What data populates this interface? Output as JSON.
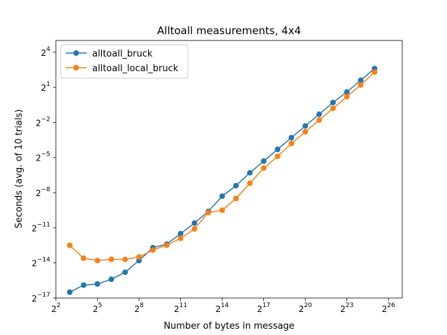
{
  "chart_data": {
    "type": "line",
    "title": "Alltoall measurements, 4x4",
    "xlabel": "Number of bytes in message",
    "ylabel": "Seconds (avg. of 10 trials)",
    "xscale": "log2",
    "yscale": "log2",
    "xlim_exp": [
      2,
      27
    ],
    "ylim_exp": [
      -17,
      5
    ],
    "x_ticks": [
      {
        "base": "2",
        "exp": "2",
        "value_exp": 2
      },
      {
        "base": "2",
        "exp": "5",
        "value_exp": 5
      },
      {
        "base": "2",
        "exp": "8",
        "value_exp": 8
      },
      {
        "base": "2",
        "exp": "11",
        "value_exp": 11
      },
      {
        "base": "2",
        "exp": "14",
        "value_exp": 14
      },
      {
        "base": "2",
        "exp": "17",
        "value_exp": 17
      },
      {
        "base": "2",
        "exp": "20",
        "value_exp": 20
      },
      {
        "base": "2",
        "exp": "23",
        "value_exp": 23
      },
      {
        "base": "2",
        "exp": "26",
        "value_exp": 26
      }
    ],
    "y_ticks": [
      {
        "base": "2",
        "exp": "4",
        "value_exp": 4
      },
      {
        "base": "2",
        "exp": "1",
        "value_exp": 1
      },
      {
        "base": "2",
        "exp": "−2",
        "value_exp": -2
      },
      {
        "base": "2",
        "exp": "−5",
        "value_exp": -5
      },
      {
        "base": "2",
        "exp": "−8",
        "value_exp": -8
      },
      {
        "base": "2",
        "exp": "−11",
        "value_exp": -11
      },
      {
        "base": "2",
        "exp": "−14",
        "value_exp": -14
      },
      {
        "base": "2",
        "exp": "−17",
        "value_exp": -17
      }
    ],
    "x_exp": [
      3,
      4,
      5,
      6,
      7,
      8,
      9,
      10,
      11,
      12,
      13,
      14,
      15,
      16,
      17,
      18,
      19,
      20,
      21,
      22,
      23,
      24,
      25
    ],
    "series": [
      {
        "name": "alltoall_bruck",
        "color": "#1f77b4",
        "y_exp": [
          -16.5,
          -15.9,
          -15.8,
          -15.4,
          -14.8,
          -13.8,
          -12.7,
          -12.4,
          -11.5,
          -10.6,
          -9.6,
          -8.3,
          -7.4,
          -6.3,
          -5.3,
          -4.3,
          -3.3,
          -2.3,
          -1.3,
          -0.3,
          0.6,
          1.6,
          2.6
        ]
      },
      {
        "name": "alltoall_local_bruck",
        "color": "#ff7f0e",
        "y_exp": [
          -12.5,
          -13.6,
          -13.8,
          -13.7,
          -13.7,
          -13.5,
          -12.9,
          -12.5,
          -11.9,
          -11.1,
          -9.7,
          -9.5,
          -8.5,
          -7.2,
          -5.9,
          -4.9,
          -3.8,
          -2.8,
          -1.8,
          -0.8,
          0.2,
          1.2,
          2.3
        ]
      }
    ],
    "legend_position": "top-left",
    "grid": false
  }
}
